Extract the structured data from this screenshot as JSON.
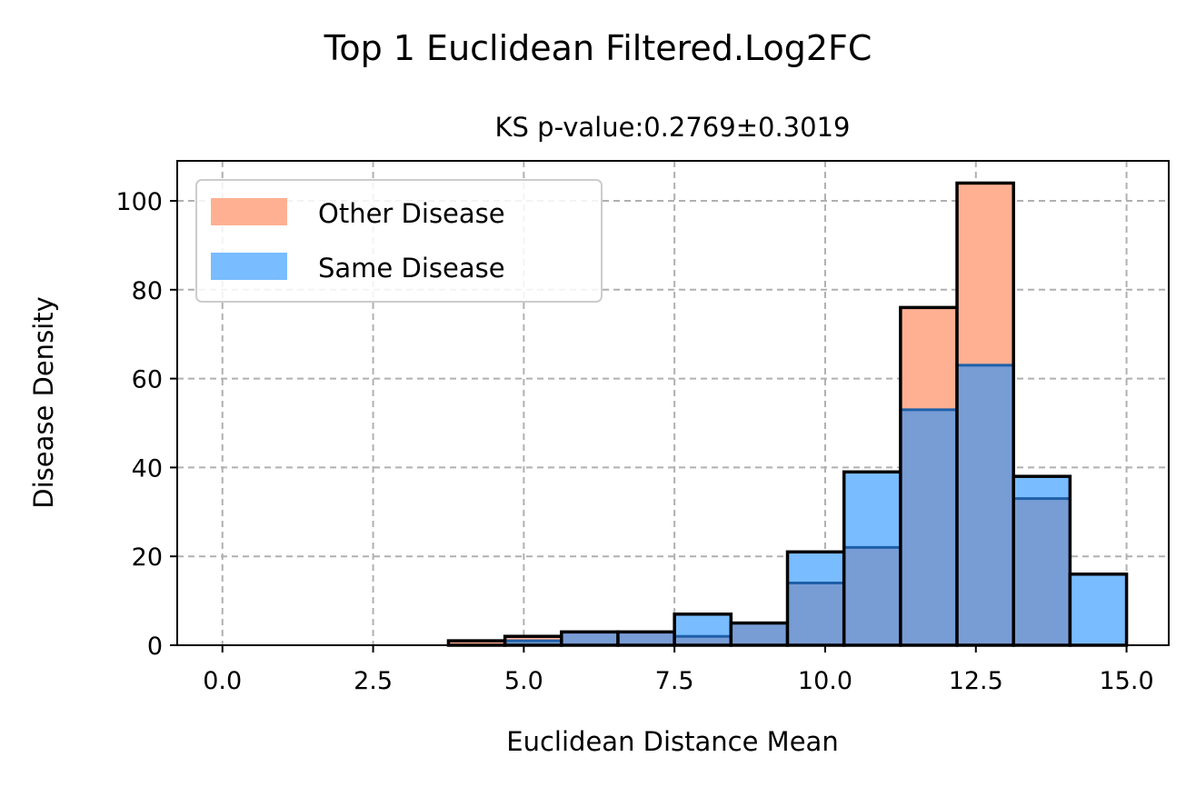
{
  "chart_data": {
    "type": "bar",
    "title": "Top 1 Euclidean Filtered.Log2FC",
    "subtitle": "KS p-value:0.2769±0.3019",
    "xlabel": "Euclidean Distance Mean",
    "ylabel": "Disease Density",
    "xlim": [
      -0.75,
      15.7
    ],
    "ylim": [
      0,
      109
    ],
    "xticks": [
      "0.0",
      "2.5",
      "5.0",
      "7.5",
      "10.0",
      "12.5",
      "15.0"
    ],
    "xtick_values": [
      0,
      2.5,
      5,
      7.5,
      10,
      12.5,
      15
    ],
    "yticks": [
      "0",
      "20",
      "40",
      "60",
      "80",
      "100"
    ],
    "ytick_values": [
      0,
      20,
      40,
      60,
      80,
      100
    ],
    "grid": true,
    "legend_position": "top-left",
    "bin_edges": [
      0,
      0.9375,
      1.875,
      2.8125,
      3.75,
      4.6875,
      5.625,
      6.5625,
      7.5,
      8.4375,
      9.375,
      10.3125,
      11.25,
      12.1875,
      13.125,
      14.0625,
      15
    ],
    "series": [
      {
        "name": "Other Disease",
        "color": "#ffb092",
        "values": [
          0,
          0,
          0,
          0,
          1,
          2,
          3,
          3,
          2,
          5,
          14,
          22,
          76,
          104,
          33,
          0
        ]
      },
      {
        "name": "Same Disease",
        "color": "#79bcff",
        "values": [
          0,
          0,
          0,
          0,
          0,
          1,
          3,
          3,
          7,
          5,
          21,
          39,
          53,
          63,
          38,
          16
        ]
      }
    ],
    "overlap_color": "#789dd5"
  }
}
